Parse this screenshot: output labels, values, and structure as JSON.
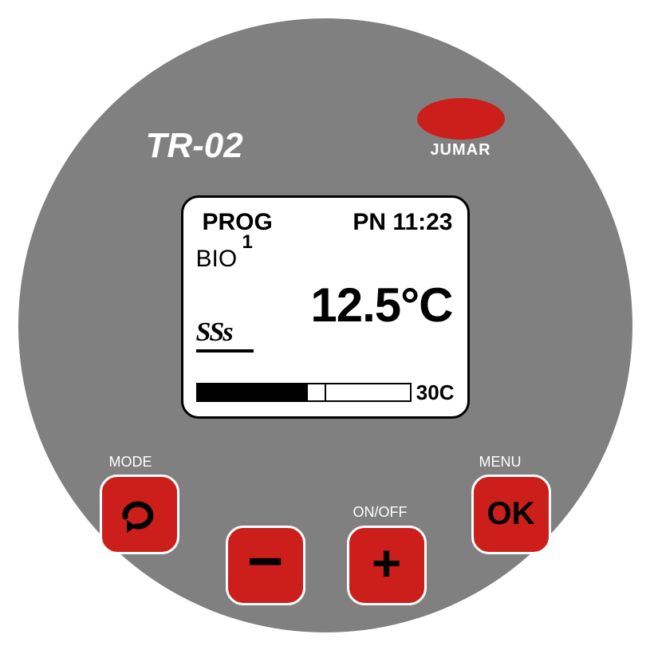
{
  "device": {
    "model": "TR-02",
    "brand": "JUMAR",
    "body_color": "#808080",
    "accent_color": "#cc1e1b",
    "screen_bg": "#ffffff",
    "screen_border": "#000000"
  },
  "screen": {
    "prog_label": "PROG",
    "prog_number": "1",
    "day": "PN",
    "time": "11:23",
    "mode_label": "BIO",
    "temperature_value": "12.5",
    "temperature_unit": "°C",
    "heat_icon_glyph": "SSs",
    "progress": {
      "fill_percent": 52,
      "tick_percent": 60,
      "target_label": "30C"
    }
  },
  "buttons": {
    "mode": {
      "label": "MODE",
      "icon_name": "return-icon"
    },
    "minus": {
      "glyph": "−"
    },
    "plus": {
      "glyph": "+",
      "label": "ON/OFF"
    },
    "menu": {
      "text": "OK",
      "label": "MENU"
    }
  }
}
